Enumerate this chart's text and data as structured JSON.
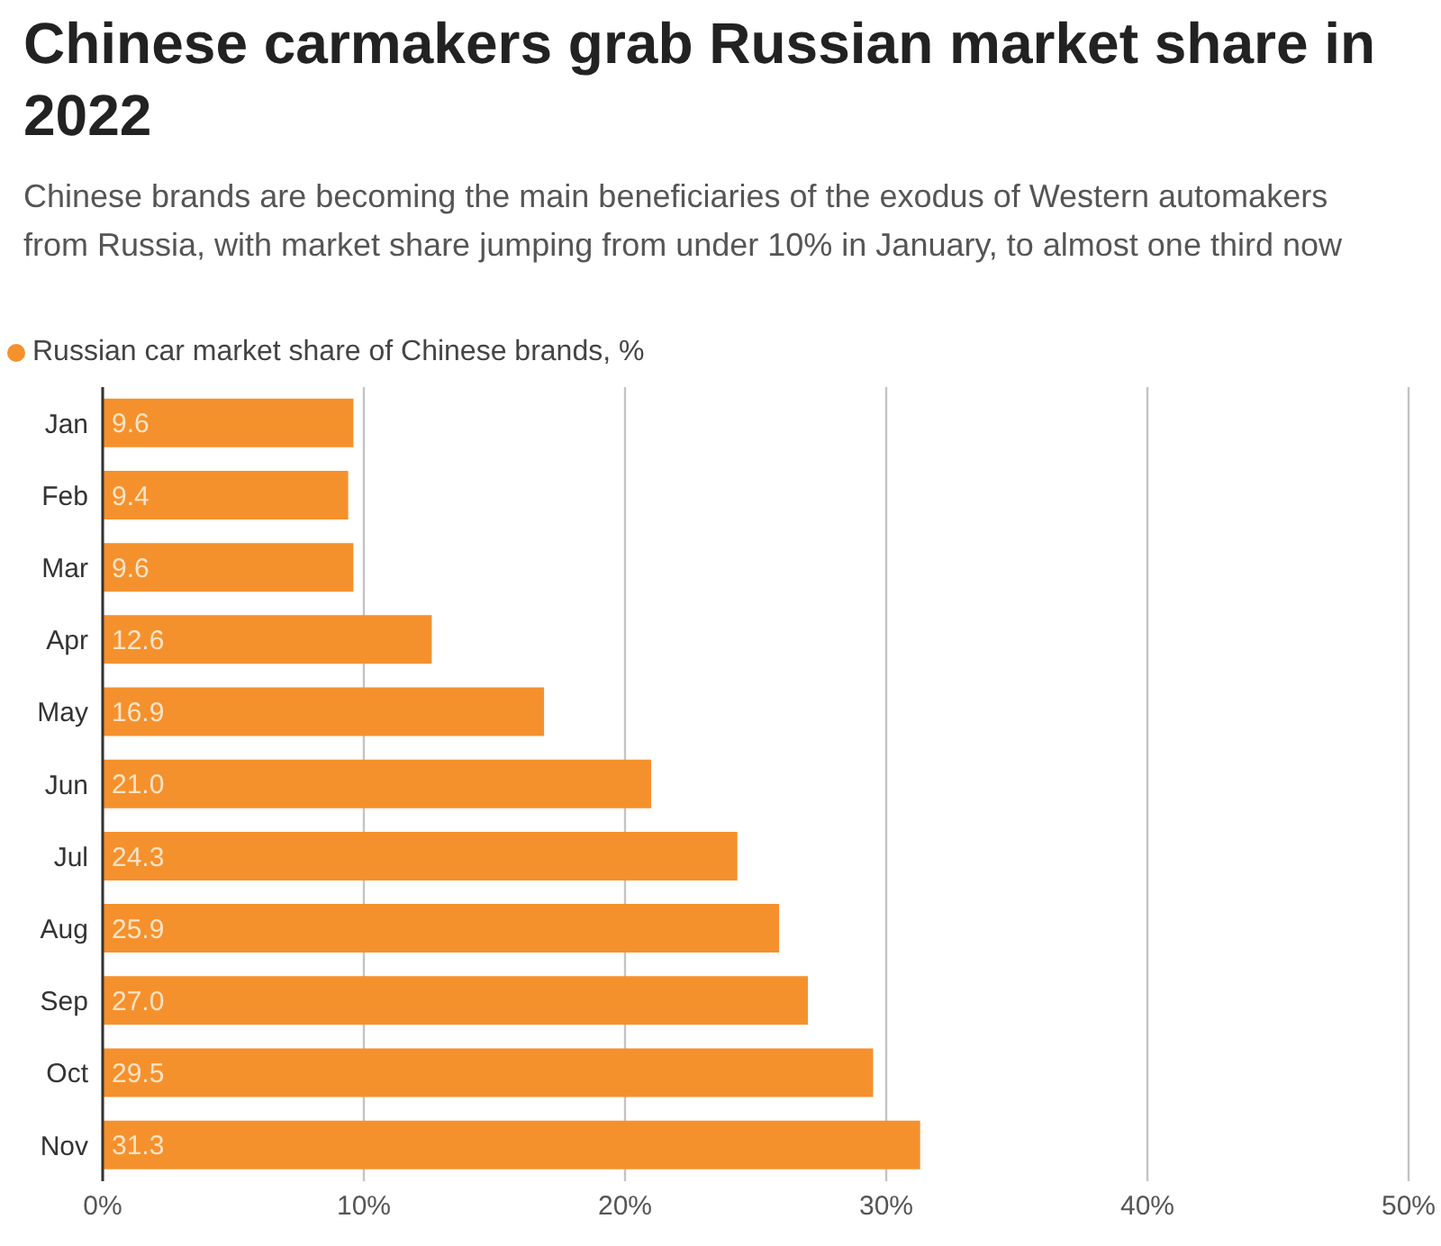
{
  "chart_data": {
    "type": "bar",
    "orientation": "horizontal",
    "title": "Chinese carmakers grab Russian market share in 2022",
    "subtitle": "Chinese brands are becoming the main beneficiaries of the exodus of Western automakers from Russia, with market share jumping from under 10% in January, to almost one third now",
    "categories": [
      "Jan",
      "Feb",
      "Mar",
      "Apr",
      "May",
      "Jun",
      "Jul",
      "Aug",
      "Sep",
      "Oct",
      "Nov"
    ],
    "series": [
      {
        "name": "Russian car market share of Chinese brands, %",
        "color": "#f5912d",
        "values": [
          9.6,
          9.4,
          9.6,
          12.6,
          16.9,
          21.0,
          24.3,
          25.9,
          27.0,
          29.5,
          31.3
        ],
        "value_labels": [
          "9.6",
          "9.4",
          "9.6",
          "12.6",
          "16.9",
          "21.0",
          "24.3",
          "25.9",
          "27.0",
          "29.5",
          "31.3"
        ]
      }
    ],
    "xlim": [
      0,
      50
    ],
    "xticks": [
      {
        "value": 0,
        "label": "0%"
      },
      {
        "value": 10,
        "label": "10%"
      },
      {
        "value": 20,
        "label": "20%"
      },
      {
        "value": 30,
        "label": "30%"
      },
      {
        "value": 40,
        "label": "40%"
      },
      {
        "value": 50,
        "label": "50%"
      }
    ],
    "grid": "x",
    "legend": "top left"
  }
}
